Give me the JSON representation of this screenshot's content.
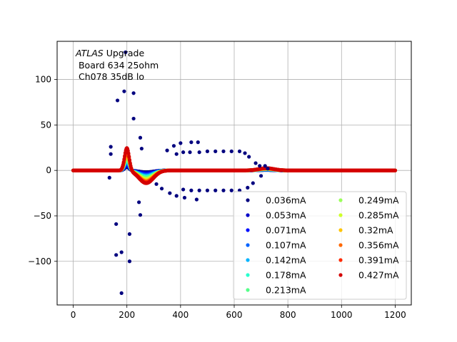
{
  "chart_data": {
    "type": "scatter",
    "annotation": {
      "lines": [
        "ATLAS Upgrade",
        " Board 634 25ohm",
        " Ch078 35dB lo"
      ],
      "italic_word": "ATLAS",
      "rest_of_first_line": " Upgrade"
    },
    "xlim": [
      -60,
      1260
    ],
    "ylim": [
      -148,
      142
    ],
    "x_ticks": [
      0,
      200,
      400,
      600,
      800,
      1000,
      1200
    ],
    "y_ticks": [
      -100,
      -50,
      0,
      50,
      100
    ],
    "x_tick_labels": [
      "0",
      "200",
      "400",
      "600",
      "800",
      "1000",
      "1200"
    ],
    "y_tick_labels": [
      "−100",
      "−50",
      "0",
      "50",
      "100"
    ],
    "grid": true,
    "legend": {
      "placement": "lower-right",
      "columns": 2
    },
    "series": [
      {
        "name": "0.036mA",
        "color": "#00007f"
      },
      {
        "name": "0.053mA",
        "color": "#0000c8"
      },
      {
        "name": "0.071mA",
        "color": "#0010ff"
      },
      {
        "name": "0.107mA",
        "color": "#0064ff"
      },
      {
        "name": "0.142mA",
        "color": "#00b4ff"
      },
      {
        "name": "0.178mA",
        "color": "#29ffce"
      },
      {
        "name": "0.213mA",
        "color": "#56ff8a"
      },
      {
        "name": "0.249mA",
        "color": "#9aff5a"
      },
      {
        "name": "0.285mA",
        "color": "#ceff29"
      },
      {
        "name": "0.32mA",
        "color": "#ffc400"
      },
      {
        "name": "0.356mA",
        "color": "#ff6800"
      },
      {
        "name": "0.391mA",
        "color": "#ff2a00"
      },
      {
        "name": "0.427mA",
        "color": "#d40000"
      }
    ],
    "outlier_points": {
      "series": "0.036mA",
      "points": [
        [
          135,
          -8
        ],
        [
          140,
          18
        ],
        [
          140,
          26
        ],
        [
          160,
          -59
        ],
        [
          165,
          77
        ],
        [
          160,
          -93
        ],
        [
          180,
          -90
        ],
        [
          180,
          -135
        ],
        [
          190,
          87
        ],
        [
          195,
          130
        ],
        [
          210,
          -70
        ],
        [
          210,
          -100
        ],
        [
          225,
          85
        ],
        [
          225,
          57
        ],
        [
          250,
          36
        ],
        [
          255,
          24
        ],
        [
          245,
          -35
        ],
        [
          250,
          -49
        ],
        [
          310,
          -15
        ],
        [
          330,
          -20
        ],
        [
          350,
          22
        ],
        [
          360,
          -25
        ],
        [
          375,
          27
        ],
        [
          385,
          -28
        ],
        [
          385,
          18
        ],
        [
          400,
          30
        ],
        [
          415,
          -30
        ],
        [
          440,
          31
        ],
        [
          460,
          -32
        ],
        [
          465,
          31
        ],
        [
          410,
          20
        ],
        [
          435,
          20
        ],
        [
          470,
          20
        ],
        [
          500,
          21
        ],
        [
          530,
          21
        ],
        [
          560,
          21
        ],
        [
          590,
          21
        ],
        [
          620,
          21
        ],
        [
          640,
          19
        ],
        [
          655,
          15
        ],
        [
          680,
          8
        ],
        [
          695,
          5
        ],
        [
          715,
          5
        ],
        [
          410,
          -21
        ],
        [
          440,
          -22
        ],
        [
          470,
          -22
        ],
        [
          500,
          -22
        ],
        [
          530,
          -22
        ],
        [
          560,
          -22
        ],
        [
          590,
          -22
        ],
        [
          620,
          -22
        ],
        [
          650,
          -19
        ],
        [
          670,
          -14
        ],
        [
          700,
          -6
        ],
        [
          725,
          2
        ]
      ]
    },
    "waveform_model": {
      "x_range": [
        0,
        1200
      ],
      "step": 2,
      "baseline": 0,
      "positive_pulse": {
        "center": 200,
        "width": 12,
        "peak_min": 4,
        "peak_max": 25
      },
      "negative_lobe": {
        "center": 272,
        "width": 38,
        "depth_min": -2,
        "depth_max": -14
      },
      "late_bump": {
        "center": 720,
        "width": 40,
        "height_min": 0.5,
        "height_max": 2.5
      }
    }
  }
}
